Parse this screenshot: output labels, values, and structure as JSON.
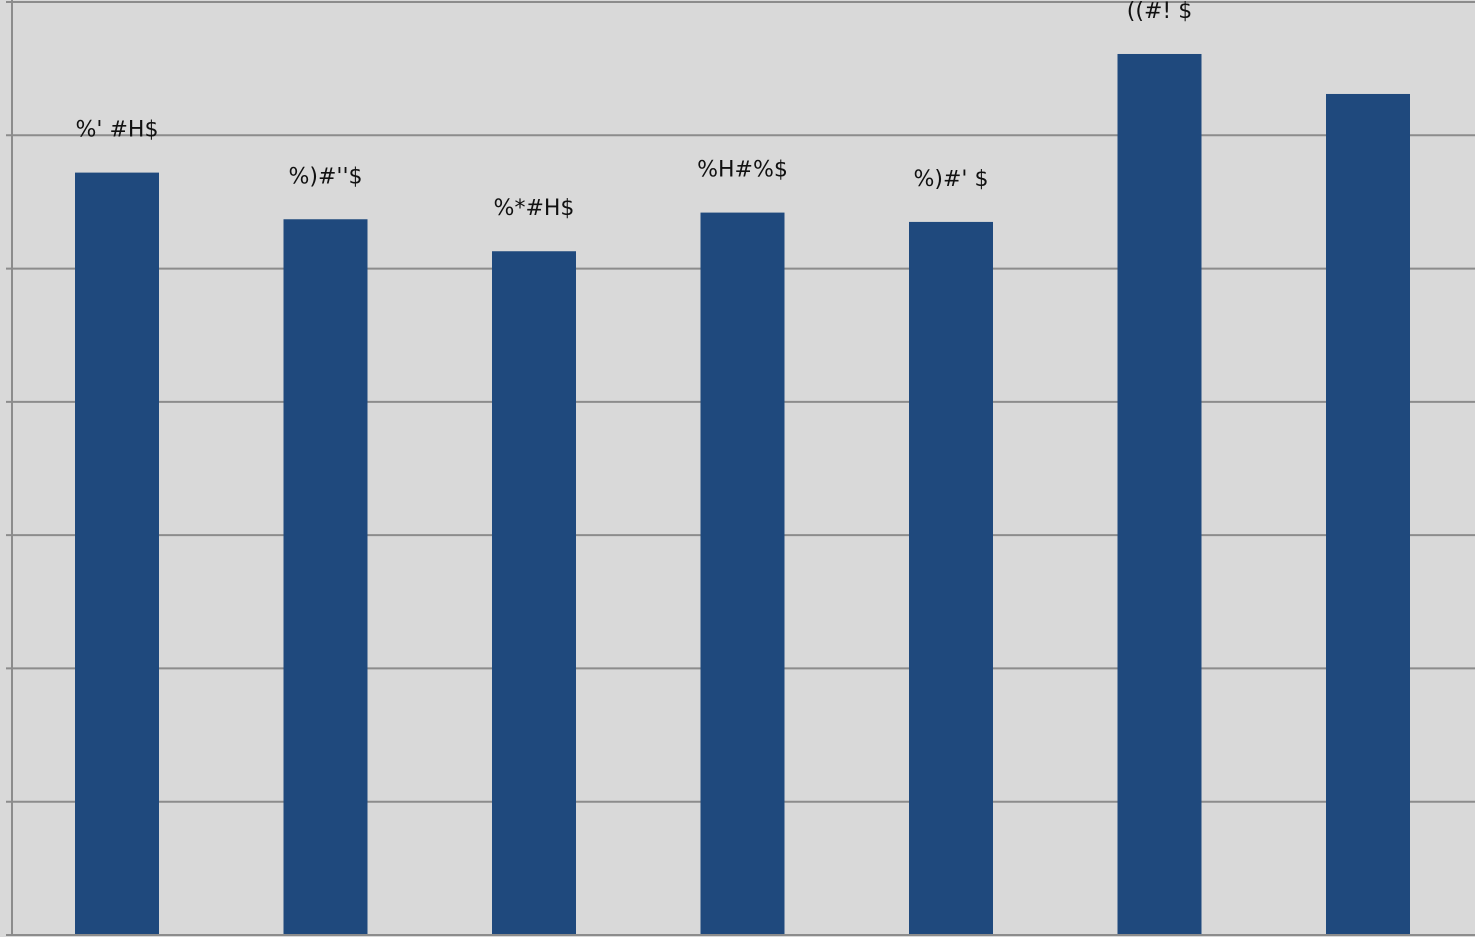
{
  "chart_data": {
    "type": "bar",
    "categories": [
      "",
      "",
      "",
      "",
      "",
      "",
      ""
    ],
    "values": [
      5.72,
      5.37,
      5.13,
      5.42,
      5.35,
      6.61,
      6.31
    ],
    "data_labels": [
      "%' #H$",
      "%)#''$",
      "%*#H$",
      "%H#%$",
      "%)#' $",
      "((#! $",
      ""
    ],
    "title": "",
    "xlabel": "",
    "ylabel": "",
    "ylim": [
      0,
      7
    ],
    "ytick_step": 1,
    "grid": true,
    "legend": "none",
    "colors": {
      "bar": "#1f497d",
      "plot_background": "#d9d9d9",
      "grid": "#8c8c8c",
      "axis": "#8c8c8c",
      "label": "#111111"
    }
  }
}
